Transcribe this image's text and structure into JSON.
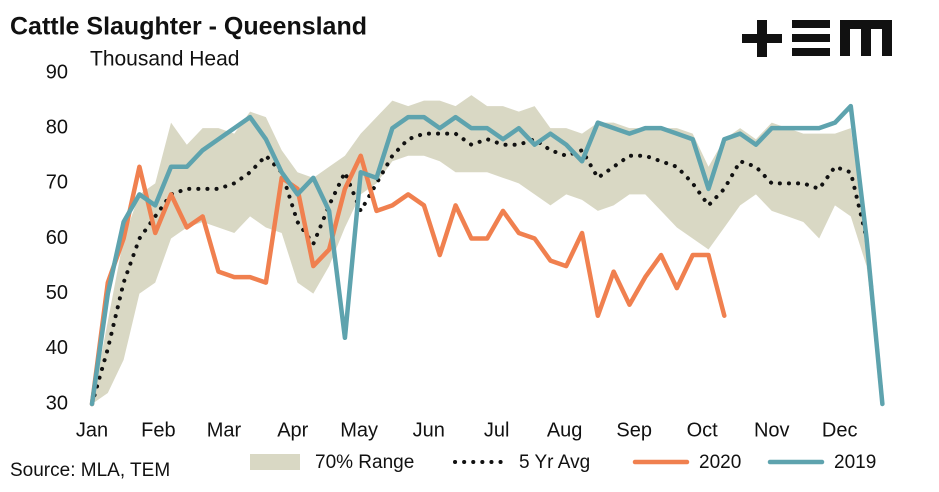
{
  "chart_data": {
    "type": "line",
    "title": "Cattle Slaughter - Queensland",
    "subtitle": "Thousand Head",
    "source": "Source: MLA, TEM",
    "x": [
      1,
      2,
      3,
      4,
      5,
      6,
      7,
      8,
      9,
      10,
      11,
      12,
      13,
      14,
      15,
      16,
      17,
      18,
      19,
      20,
      21,
      22,
      23,
      24,
      25,
      26,
      27,
      28,
      29,
      30,
      31,
      32,
      33,
      34,
      35,
      36,
      37,
      38,
      39,
      40,
      41,
      42,
      43,
      44,
      45,
      46,
      47,
      48,
      49,
      50,
      51
    ],
    "xlim": [
      1,
      53
    ],
    "xticks": [
      {
        "value": 1,
        "label": "Jan"
      },
      {
        "value": 5.2,
        "label": "Feb"
      },
      {
        "value": 9.35,
        "label": "Mar"
      },
      {
        "value": 13.7,
        "label": "Apr"
      },
      {
        "value": 17.9,
        "label": "May"
      },
      {
        "value": 22.3,
        "label": "Jun"
      },
      {
        "value": 26.6,
        "label": "Jul"
      },
      {
        "value": 30.9,
        "label": "Aug"
      },
      {
        "value": 35.3,
        "label": "Sep"
      },
      {
        "value": 39.6,
        "label": "Oct"
      },
      {
        "value": 44,
        "label": "Nov"
      },
      {
        "value": 48.3,
        "label": "Dec"
      }
    ],
    "ylim": [
      30,
      90
    ],
    "yticks": [
      30,
      40,
      50,
      60,
      70,
      80,
      90
    ],
    "range": {
      "name": "70% Range",
      "color": "#d9d8c4",
      "low": [
        30,
        32,
        38,
        50,
        52,
        60,
        62,
        63,
        62,
        61,
        64,
        62,
        61,
        52,
        50,
        55,
        62,
        68,
        70,
        74,
        75,
        75,
        74,
        72,
        72,
        72,
        71,
        70,
        68,
        66,
        68,
        67,
        65,
        66,
        68,
        68,
        65,
        62,
        60,
        58,
        62,
        66,
        68,
        65,
        64,
        63,
        60,
        66,
        64,
        55,
        30
      ],
      "high": [
        30,
        45,
        60,
        68,
        70,
        81,
        77,
        80,
        80,
        79,
        83,
        82,
        76,
        72,
        71,
        73,
        75,
        79,
        82,
        85,
        84,
        85,
        85,
        84,
        86,
        84,
        84,
        83,
        84,
        80,
        80,
        79,
        81,
        81,
        80,
        80,
        80,
        80,
        79,
        73,
        78,
        80,
        78,
        81,
        80,
        79,
        79,
        79,
        80,
        60,
        30
      ]
    },
    "series": [
      {
        "name": "5 Yr Avg",
        "color": "#111111",
        "dotted": true,
        "values": [
          30,
          40,
          52,
          60,
          64,
          68,
          69,
          69,
          69,
          70,
          72,
          75,
          72,
          63,
          59,
          66,
          72,
          65,
          70,
          75,
          78,
          79,
          79,
          79,
          77,
          78,
          77,
          77,
          78,
          76,
          75,
          76,
          71,
          73,
          75,
          75,
          74,
          73,
          70,
          66,
          69,
          74,
          73,
          70,
          70,
          70,
          69,
          73,
          72,
          60,
          30
        ]
      },
      {
        "name": "2020",
        "color": "#f0804f",
        "values": [
          30,
          52,
          60,
          73,
          61,
          68,
          62,
          64,
          54,
          53,
          53,
          52,
          71,
          69,
          55,
          58,
          69,
          75,
          65,
          66,
          68,
          66,
          57,
          66,
          60,
          60,
          65,
          61,
          60,
          56,
          55,
          61,
          46,
          54,
          48,
          53,
          57,
          51,
          57,
          57,
          46,
          null,
          null,
          null,
          null,
          null,
          null,
          null,
          null,
          null,
          null
        ]
      },
      {
        "name": "2019",
        "color": "#5ea3ae",
        "values": [
          30,
          50,
          63,
          68,
          66,
          73,
          73,
          76,
          78,
          80,
          82,
          78,
          72,
          68,
          71,
          65,
          42,
          72,
          71,
          80,
          82,
          82,
          80,
          82,
          80,
          80,
          78,
          80,
          77,
          79,
          77,
          74,
          81,
          80,
          79,
          80,
          80,
          79,
          78,
          69,
          78,
          79,
          77,
          80,
          80,
          80,
          80,
          81,
          84,
          60,
          30
        ]
      }
    ]
  }
}
